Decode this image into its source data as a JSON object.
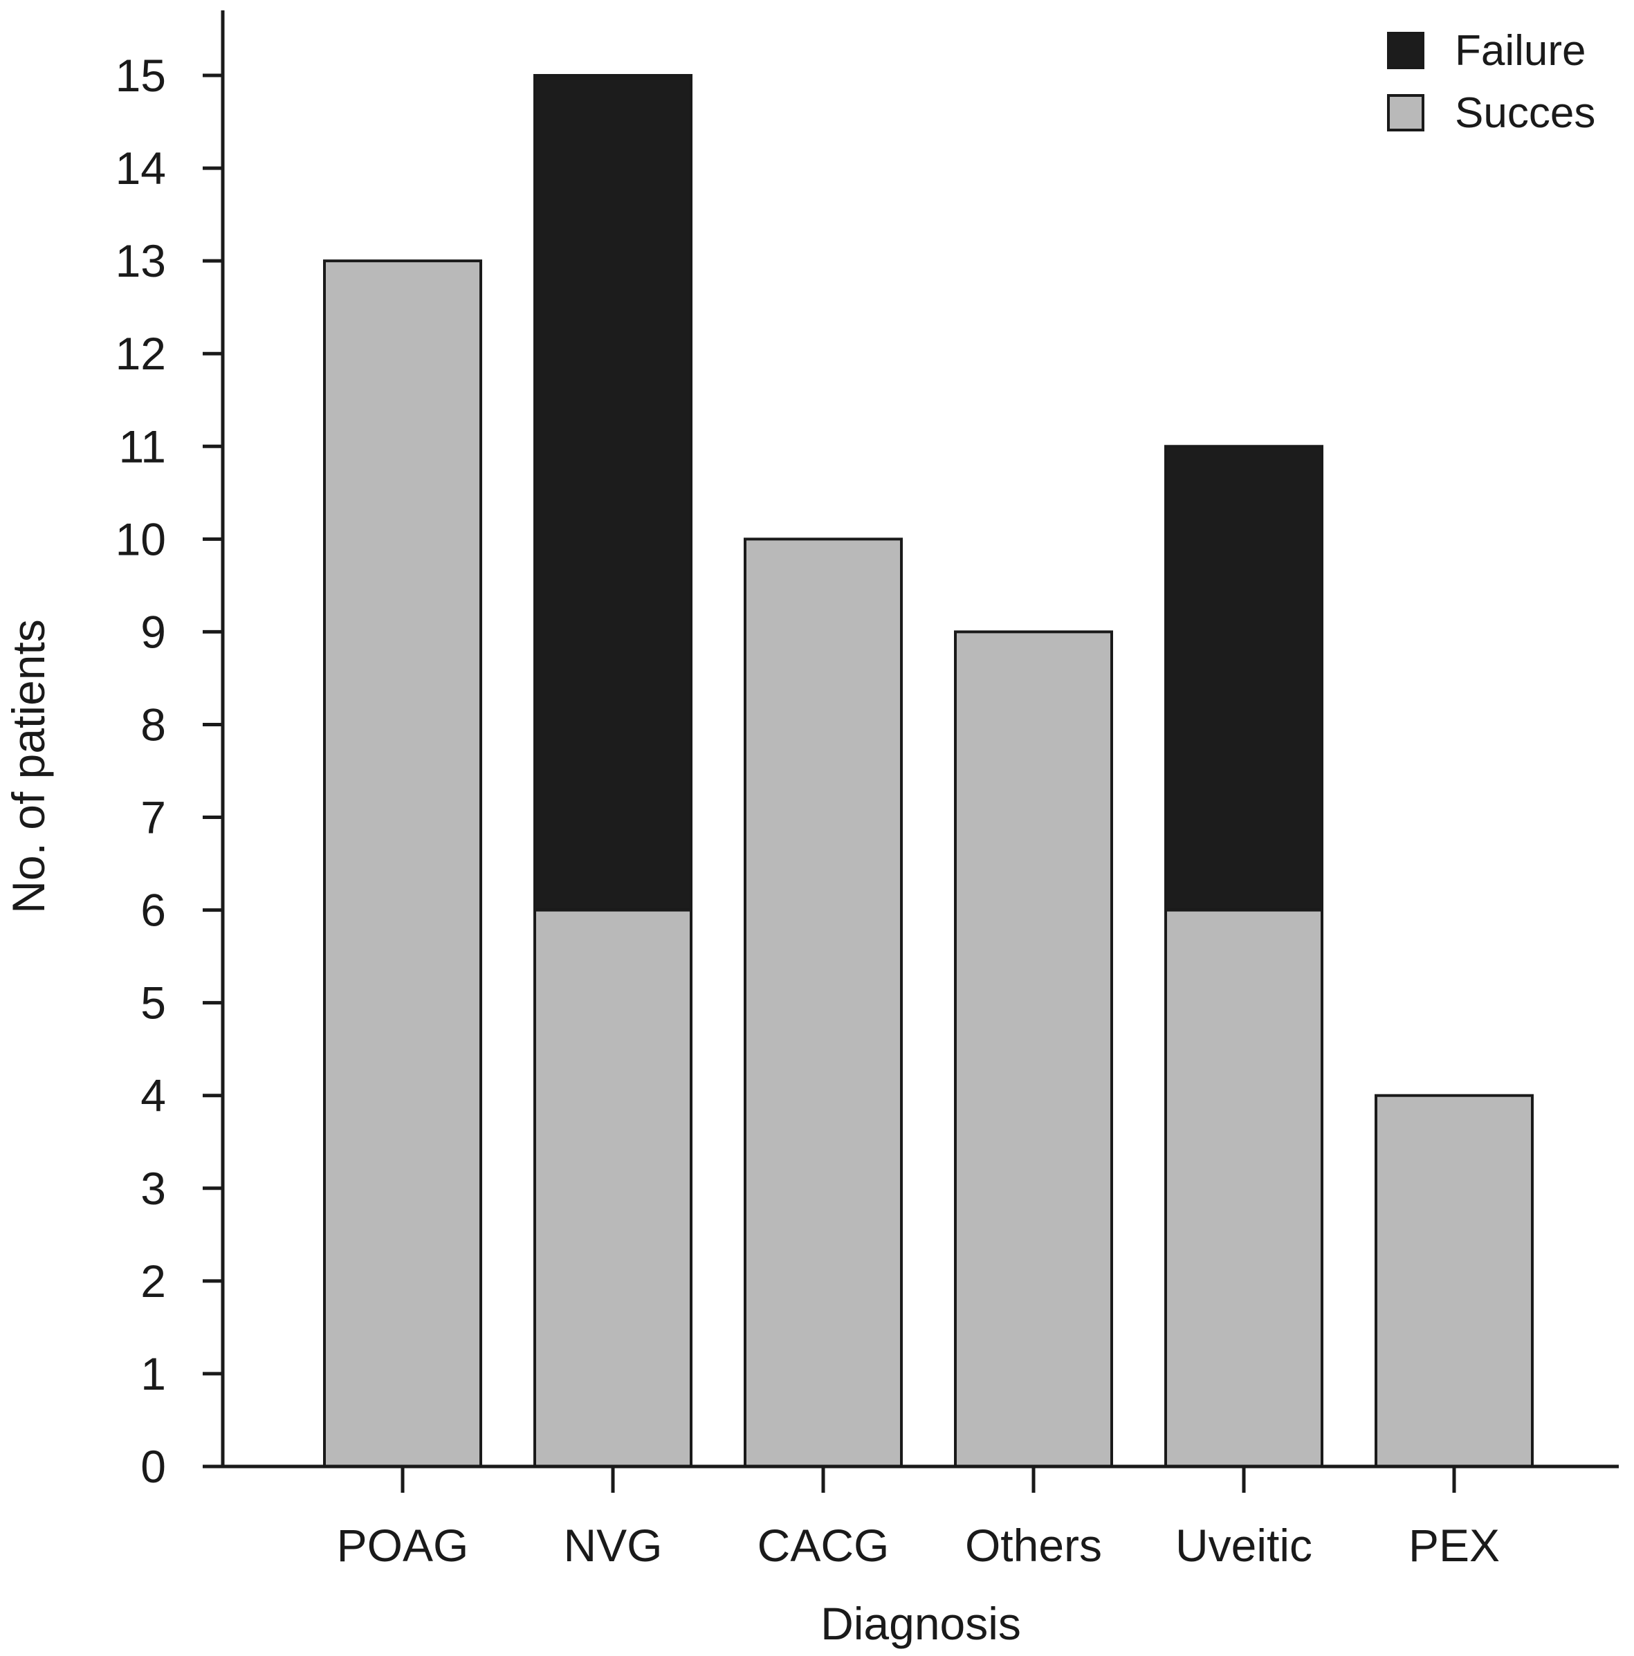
{
  "chart_data": {
    "type": "bar",
    "stacked": true,
    "categories": [
      "POAG",
      "NVG",
      "CACG",
      "Others",
      "Uveitic",
      "PEX"
    ],
    "series": [
      {
        "name": "Succes",
        "color": "#b9b9b9",
        "values": [
          13,
          6,
          10,
          9,
          6,
          4
        ]
      },
      {
        "name": "Failure",
        "color": "#1c1c1c",
        "values": [
          0,
          9,
          0,
          0,
          5,
          0
        ]
      }
    ],
    "title": "",
    "xlabel": "Diagnosis",
    "ylabel": "No. of patients",
    "ylim": [
      0,
      15
    ],
    "yticks": [
      "0",
      "1",
      "2",
      "3",
      "4",
      "5",
      "6",
      "7",
      "8",
      "9",
      "10",
      "11",
      "12",
      "13",
      "14",
      "15"
    ],
    "grid": false,
    "legend_position": "top-right",
    "legend_entries": [
      "Failure",
      "Succes"
    ]
  }
}
